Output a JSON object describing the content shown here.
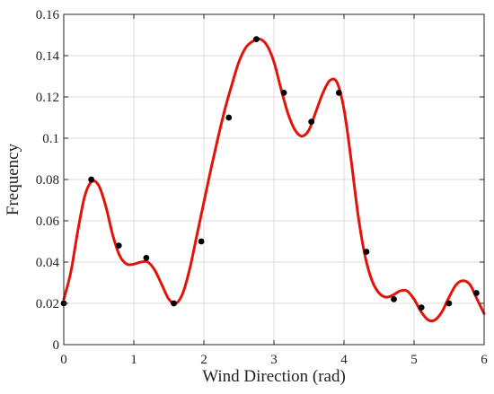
{
  "chart_data": {
    "type": "scatter",
    "title": "",
    "xlabel": "Wind Direction (rad)",
    "ylabel": "Frequency",
    "xlim": [
      0,
      6
    ],
    "ylim": [
      0,
      0.16
    ],
    "grid": true,
    "xticks": [
      0,
      1,
      2,
      3,
      4,
      5,
      6
    ],
    "xtick_labels": [
      "0",
      "1",
      "2",
      "3",
      "4",
      "5",
      "6"
    ],
    "yticks": [
      0,
      0.02,
      0.04,
      0.06,
      0.08,
      0.1,
      0.12,
      0.14,
      0.16
    ],
    "ytick_labels": [
      "0",
      "0.02",
      "0.04",
      "0.06",
      "0.08",
      "0.1",
      "0.12",
      "0.14",
      "0.16"
    ],
    "series": [
      {
        "kind": "points",
        "color": "#000000",
        "x": [
          0.0,
          0.393,
          0.785,
          1.178,
          1.571,
          1.963,
          2.356,
          2.749,
          3.142,
          3.534,
          3.927,
          4.32,
          4.712,
          5.105,
          5.498,
          5.89
        ],
        "y": [
          0.02,
          0.08,
          0.048,
          0.042,
          0.02,
          0.05,
          0.11,
          0.148,
          0.122,
          0.108,
          0.122,
          0.045,
          0.022,
          0.018,
          0.02,
          0.025
        ]
      },
      {
        "kind": "curve",
        "color": "#e3120b",
        "x": [
          0.0,
          0.1,
          0.2,
          0.3,
          0.4,
          0.5,
          0.6,
          0.7,
          0.8,
          0.9,
          1.0,
          1.1,
          1.2,
          1.3,
          1.4,
          1.5,
          1.6,
          1.7,
          1.8,
          1.9,
          2.0,
          2.1,
          2.2,
          2.3,
          2.4,
          2.5,
          2.6,
          2.7,
          2.8,
          2.9,
          3.0,
          3.1,
          3.2,
          3.3,
          3.4,
          3.5,
          3.6,
          3.7,
          3.8,
          3.9,
          4.0,
          4.1,
          4.2,
          4.3,
          4.4,
          4.5,
          4.6,
          4.7,
          4.8,
          4.9,
          5.0,
          5.1,
          5.2,
          5.3,
          5.4,
          5.5,
          5.6,
          5.7,
          5.8,
          5.9,
          6.0
        ],
        "y": [
          0.022,
          0.035,
          0.055,
          0.072,
          0.079,
          0.077,
          0.067,
          0.053,
          0.043,
          0.039,
          0.039,
          0.04,
          0.04,
          0.036,
          0.029,
          0.022,
          0.02,
          0.025,
          0.037,
          0.053,
          0.069,
          0.085,
          0.1,
          0.114,
          0.126,
          0.137,
          0.144,
          0.147,
          0.148,
          0.145,
          0.137,
          0.124,
          0.112,
          0.104,
          0.101,
          0.104,
          0.113,
          0.122,
          0.128,
          0.127,
          0.114,
          0.09,
          0.063,
          0.043,
          0.031,
          0.025,
          0.023,
          0.024,
          0.026,
          0.026,
          0.022,
          0.016,
          0.012,
          0.012,
          0.016,
          0.023,
          0.029,
          0.031,
          0.029,
          0.022,
          0.015
        ]
      }
    ]
  }
}
